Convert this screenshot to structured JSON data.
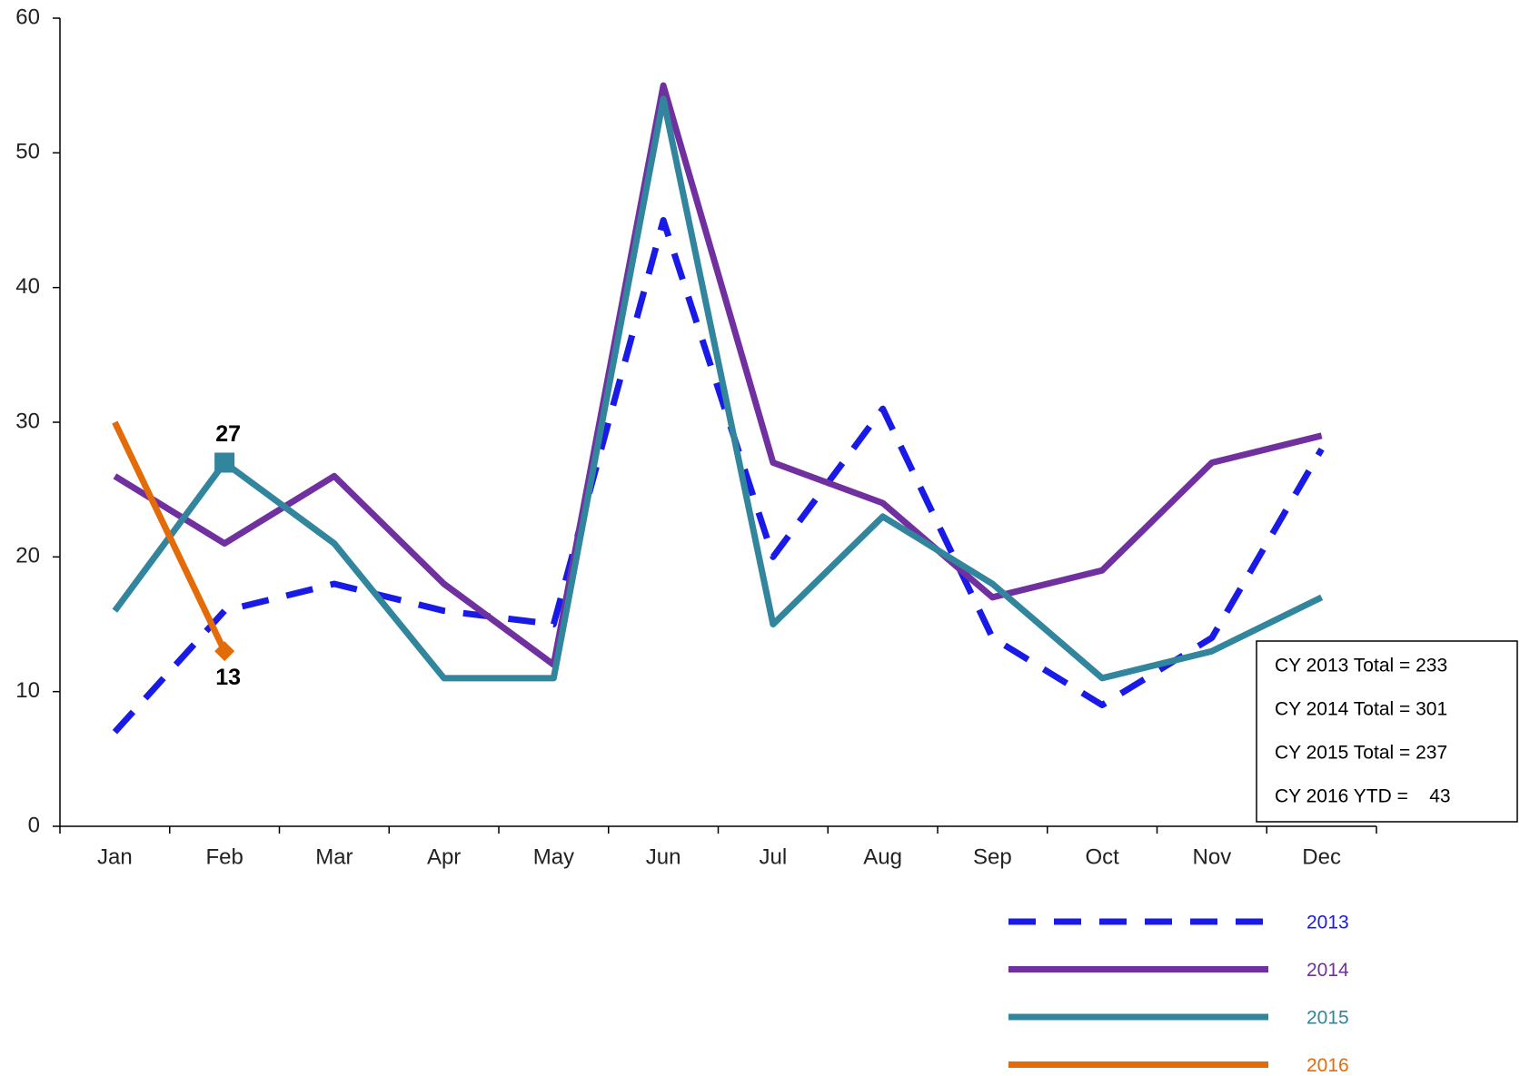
{
  "chart_data": {
    "type": "line",
    "categories": [
      "Jan",
      "Feb",
      "Mar",
      "Apr",
      "May",
      "Jun",
      "Jul",
      "Aug",
      "Sep",
      "Oct",
      "Nov",
      "Dec"
    ],
    "series": [
      {
        "name": "2013",
        "color": "#1a1ae8",
        "dashed": true,
        "values": [
          7,
          16,
          18,
          16,
          15,
          45,
          20,
          31,
          14,
          9,
          14,
          28
        ]
      },
      {
        "name": "2014",
        "color": "#7030a0",
        "values": [
          26,
          21,
          26,
          18,
          12,
          55,
          27,
          24,
          17,
          19,
          27,
          29
        ]
      },
      {
        "name": "2015",
        "color": "#31859c",
        "labeled_index": 1,
        "marker": "square",
        "label_side": "above",
        "values": [
          16,
          27,
          21,
          11,
          11,
          54,
          15,
          23,
          18,
          11,
          13,
          17
        ]
      },
      {
        "name": "2016",
        "color": "#e36c09",
        "labeled_index": 1,
        "marker": "diamond",
        "label_side": "below",
        "values": [
          30,
          13,
          null,
          null,
          null,
          null,
          null,
          null,
          null,
          null,
          null,
          null
        ]
      }
    ],
    "ylim": [
      0,
      60
    ],
    "yticks": [
      0,
      10,
      20,
      30,
      40,
      50,
      60
    ],
    "grid": false,
    "annotations": [
      "CY 2013 Total = 233",
      "CY 2014 Total = 301",
      "CY 2015 Total = 237",
      "CY 2016 YTD =    43"
    ],
    "legend": "bottom-right"
  }
}
